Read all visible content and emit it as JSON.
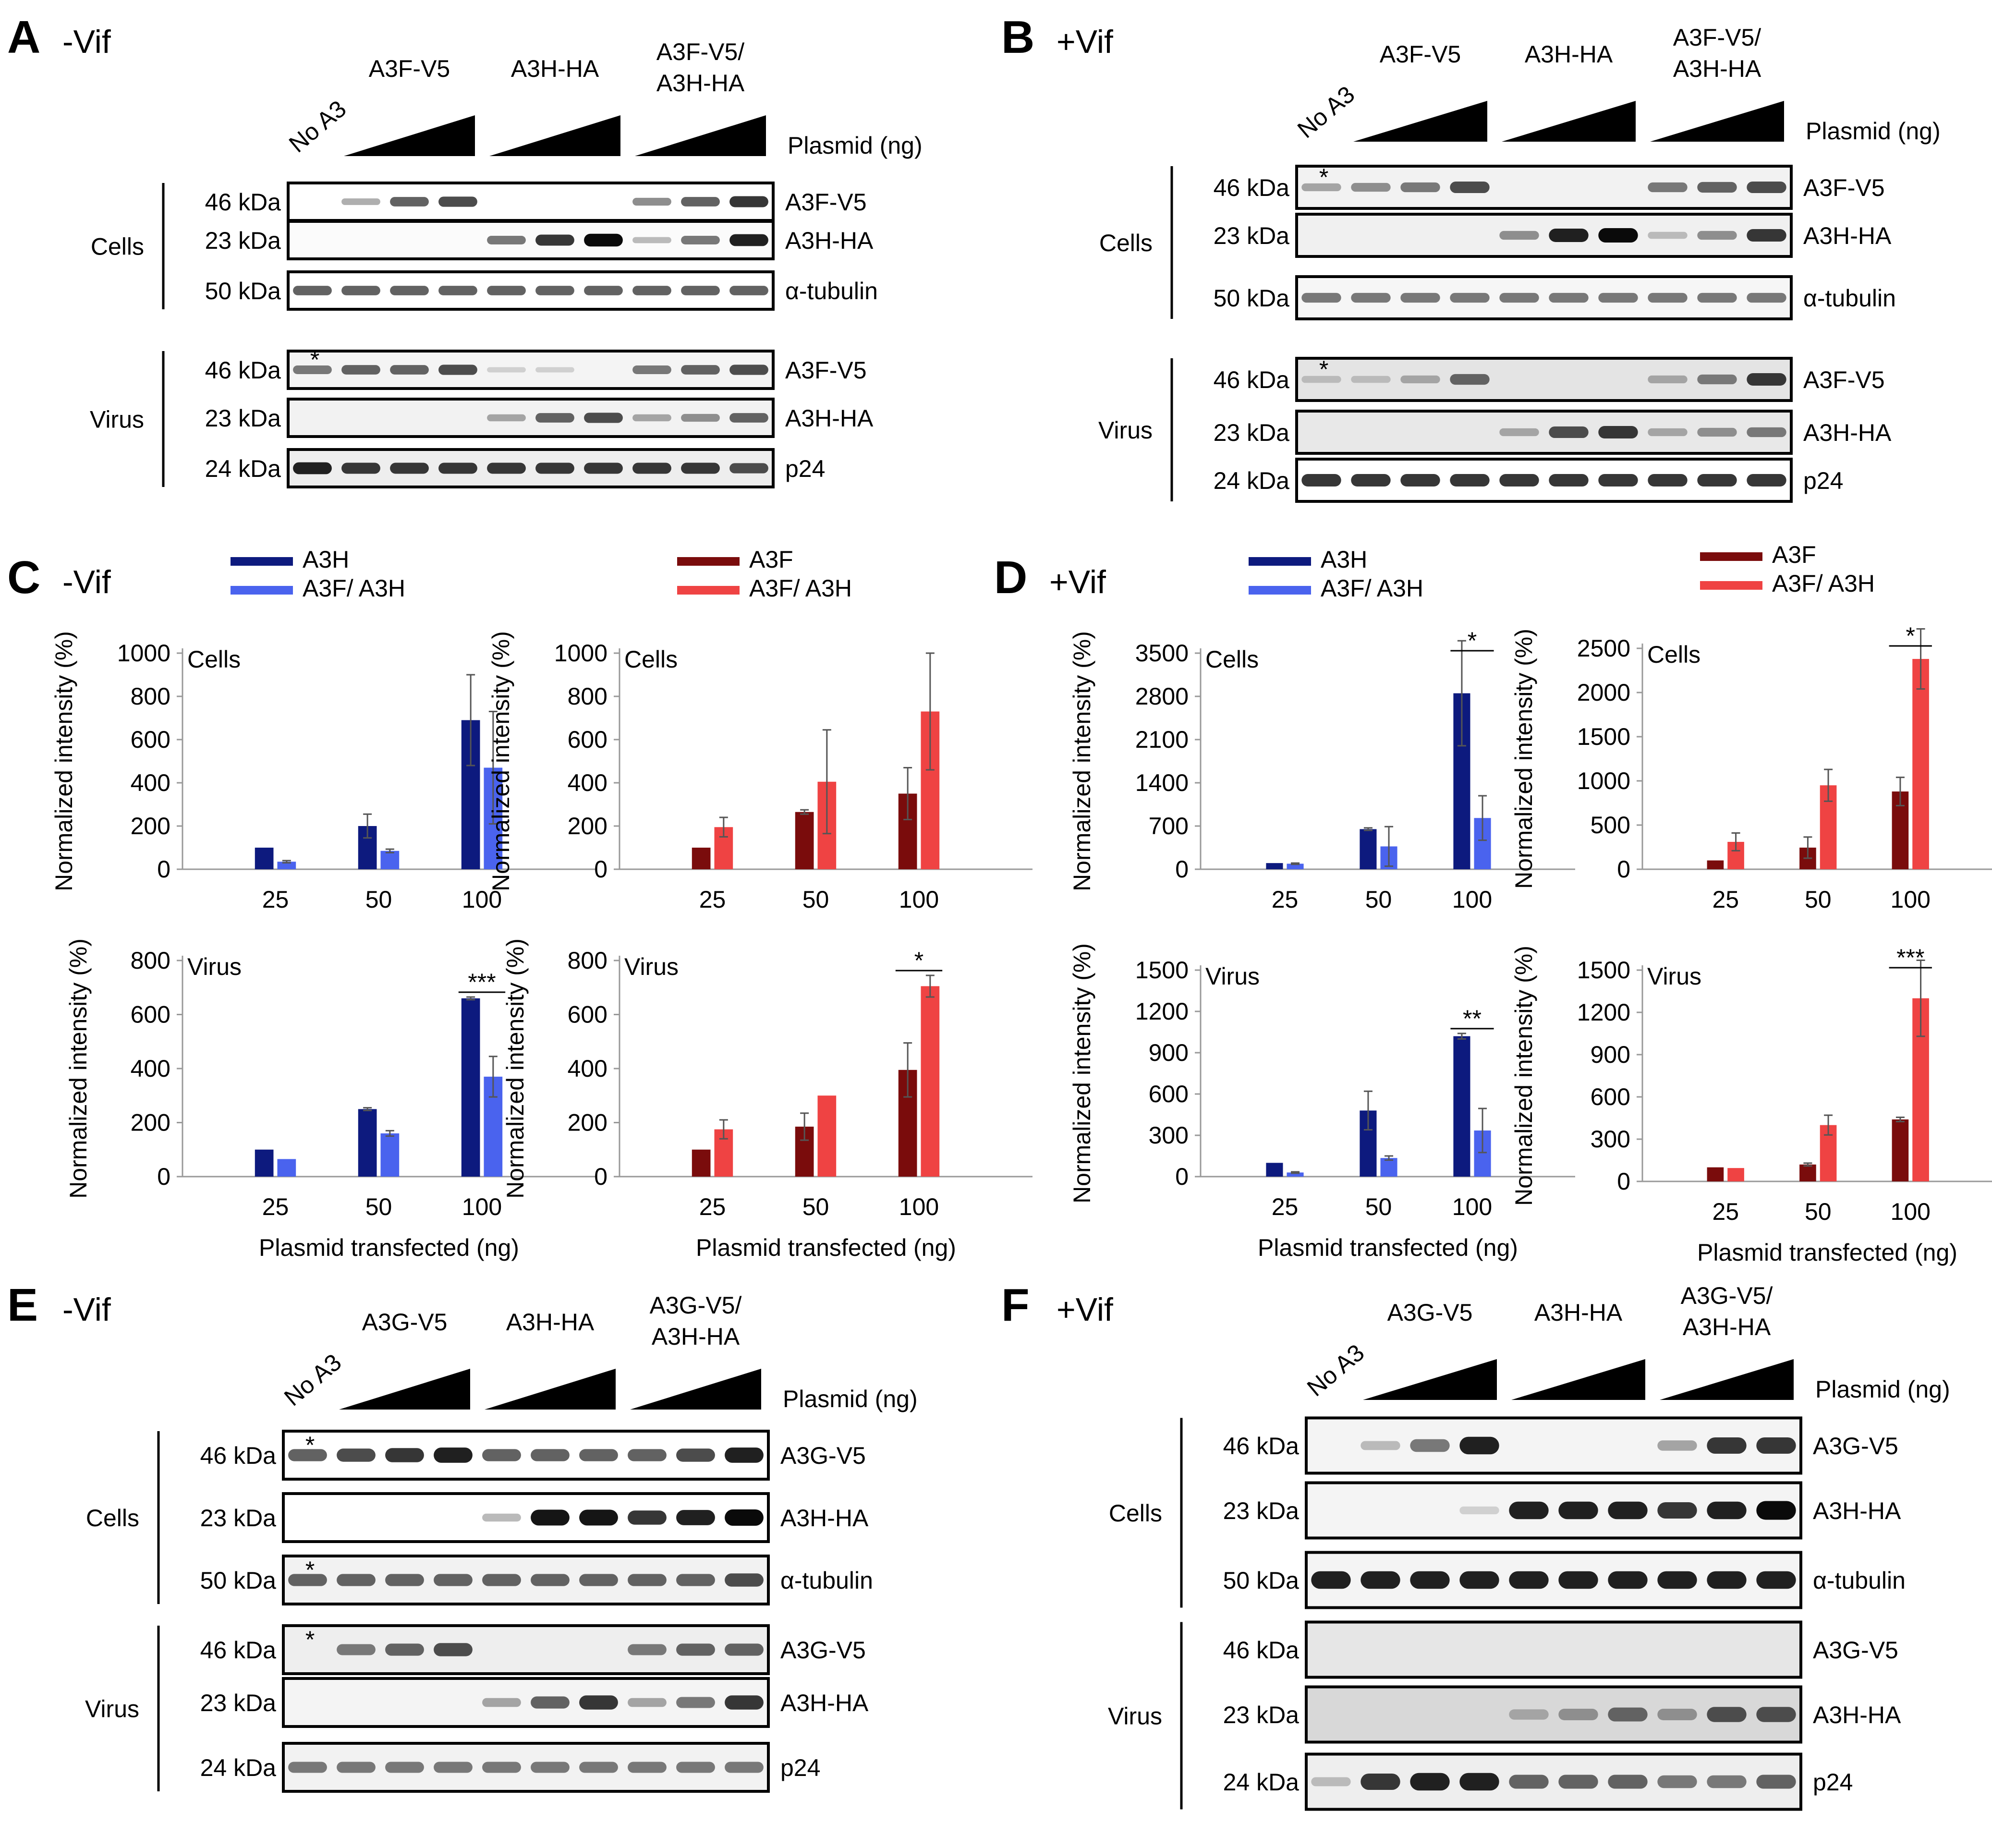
{
  "panels": [
    {
      "letter": "A",
      "condition": "-Vif",
      "groups": [
        "A3F-V5",
        "A3H-HA",
        [
          "A3F-V5/",
          "A3H-HA"
        ]
      ],
      "no_a3": "No A3",
      "plasmid": "Plasmid (ng)",
      "sections": [
        {
          "name": "Cells",
          "rows": [
            {
              "mw": "46 kDa",
              "protein": "A3F-V5",
              "bands": [
                0,
                0.25,
                0.6,
                0.7,
                0,
                0,
                0,
                0.4,
                0.6,
                0.8
              ],
              "bg": "#ffffff"
            },
            {
              "mw": "23 kDa",
              "protein": "A3H-HA",
              "bands": [
                0,
                0,
                0,
                0,
                0.5,
                0.8,
                1.0,
                0.2,
                0.5,
                0.9
              ],
              "bg": "#fbfbfb"
            },
            {
              "mw": "50 kDa",
              "protein": "α-tubulin",
              "bands": [
                0.6,
                0.6,
                0.6,
                0.6,
                0.6,
                0.6,
                0.6,
                0.6,
                0.6,
                0.6
              ],
              "bg": "#ffffff"
            }
          ]
        },
        {
          "name": "Virus",
          "rows": [
            {
              "mw": "46 kDa",
              "protein": "A3F-V5",
              "bands": [
                0.5,
                0.6,
                0.6,
                0.7,
                0.1,
                0.1,
                0,
                0.5,
                0.6,
                0.7
              ],
              "bg": "#f4f4f4",
              "star": true
            },
            {
              "mw": "23 kDa",
              "protein": "A3H-HA",
              "bands": [
                0,
                0,
                0,
                0,
                0.3,
                0.6,
                0.7,
                0.3,
                0.4,
                0.6
              ],
              "bg": "#f2f2f2"
            },
            {
              "mw": "24 kDa",
              "protein": "p24",
              "bands": [
                0.9,
                0.8,
                0.8,
                0.8,
                0.8,
                0.8,
                0.8,
                0.8,
                0.8,
                0.7
              ],
              "bg": "#eeeeee"
            }
          ]
        }
      ]
    },
    {
      "letter": "B",
      "condition": "+Vif",
      "groups": [
        "A3F-V5",
        "A3H-HA",
        [
          "A3F-V5/",
          "A3H-HA"
        ]
      ],
      "no_a3": "No A3",
      "plasmid": "Plasmid (ng)",
      "sections": [
        {
          "name": "Cells",
          "rows": [
            {
              "mw": "46 kDa",
              "protein": "A3F-V5",
              "bands": [
                0.3,
                0.4,
                0.5,
                0.7,
                0,
                0,
                0,
                0.5,
                0.6,
                0.7
              ],
              "bg": "#f2f2f2",
              "star": true
            },
            {
              "mw": "23 kDa",
              "protein": "A3H-HA",
              "bands": [
                0,
                0,
                0,
                0,
                0.4,
                0.9,
                1.0,
                0.2,
                0.4,
                0.8
              ],
              "bg": "#f0f0f0"
            },
            {
              "mw": "50 kDa",
              "protein": "α-tubulin",
              "bands": [
                0.5,
                0.5,
                0.5,
                0.5,
                0.5,
                0.5,
                0.5,
                0.5,
                0.5,
                0.5
              ],
              "bg": "#f6f6f6"
            }
          ]
        },
        {
          "name": "Virus",
          "rows": [
            {
              "mw": "46 kDa",
              "protein": "A3F-V5",
              "bands": [
                0.2,
                0.2,
                0.3,
                0.6,
                0,
                0,
                0,
                0.3,
                0.5,
                0.8
              ],
              "bg": "#e4e4e4",
              "star": true
            },
            {
              "mw": "23 kDa",
              "protein": "A3H-HA",
              "bands": [
                0,
                0,
                0,
                0,
                0.3,
                0.7,
                0.8,
                0.3,
                0.4,
                0.5
              ],
              "bg": "#e8e8e8"
            },
            {
              "mw": "24 kDa",
              "protein": "p24",
              "bands": [
                0.8,
                0.8,
                0.8,
                0.8,
                0.8,
                0.8,
                0.8,
                0.8,
                0.8,
                0.8
              ],
              "bg": "#ffffff"
            }
          ]
        }
      ]
    },
    {
      "letter": "E",
      "condition": "-Vif",
      "groups": [
        "A3G-V5",
        "A3H-HA",
        [
          "A3G-V5/",
          "A3H-HA"
        ]
      ],
      "no_a3": "No A3",
      "plasmid": "Plasmid (ng)",
      "sections": [
        {
          "name": "Cells",
          "rows": [
            {
              "mw": "46 kDa",
              "protein": "A3G-V5",
              "bands": [
                0.6,
                0.7,
                0.8,
                0.9,
                0.6,
                0.6,
                0.6,
                0.6,
                0.7,
                0.9
              ],
              "bg": "#ffffff",
              "star": true
            },
            {
              "mw": "23 kDa",
              "protein": "A3H-HA",
              "bands": [
                0,
                0,
                0,
                0,
                0.2,
                0.95,
                0.95,
                0.8,
                0.9,
                1.0
              ],
              "bg": "#ffffff"
            },
            {
              "mw": "50 kDa",
              "protein": "α-tubulin",
              "bands": [
                0.6,
                0.6,
                0.6,
                0.6,
                0.6,
                0.6,
                0.6,
                0.6,
                0.6,
                0.7
              ],
              "bg": "#f2f2f2",
              "star": true
            }
          ]
        },
        {
          "name": "Virus",
          "rows": [
            {
              "mw": "46 kDa",
              "protein": "A3G-V5",
              "bands": [
                0,
                0.5,
                0.6,
                0.7,
                0,
                0,
                0,
                0.5,
                0.6,
                0.6
              ],
              "bg": "#eeeeee",
              "star": true
            },
            {
              "mw": "23 kDa",
              "protein": "A3H-HA",
              "bands": [
                0,
                0,
                0,
                0,
                0.3,
                0.6,
                0.8,
                0.3,
                0.5,
                0.8
              ],
              "bg": "#f4f4f4"
            },
            {
              "mw": "24 kDa",
              "protein": "p24",
              "bands": [
                0.5,
                0.5,
                0.5,
                0.5,
                0.5,
                0.5,
                0.5,
                0.5,
                0.5,
                0.5
              ],
              "bg": "#f2f2f2"
            }
          ]
        }
      ]
    },
    {
      "letter": "F",
      "condition": "+Vif",
      "groups": [
        "A3G-V5",
        "A3H-HA",
        [
          "A3G-V5/",
          "A3H-HA"
        ]
      ],
      "no_a3": "No A3",
      "plasmid": "Plasmid (ng)",
      "sections": [
        {
          "name": "Cells",
          "rows": [
            {
              "mw": "46 kDa",
              "protein": "A3G-V5",
              "bands": [
                0,
                0.2,
                0.5,
                0.9,
                0,
                0,
                0,
                0.3,
                0.8,
                0.8
              ],
              "bg": "#f4f4f4"
            },
            {
              "mw": "23 kDa",
              "protein": "A3H-HA",
              "bands": [
                0,
                0,
                0,
                0.1,
                0.9,
                0.9,
                0.9,
                0.8,
                0.9,
                1.0
              ],
              "bg": "#f4f4f4"
            },
            {
              "mw": "50 kDa",
              "protein": "α-tubulin",
              "bands": [
                0.9,
                0.9,
                0.9,
                0.9,
                0.9,
                0.9,
                0.9,
                0.9,
                0.9,
                0.9
              ],
              "bg": "#f4f4f4"
            }
          ]
        },
        {
          "name": "Virus",
          "rows": [
            {
              "mw": "46 kDa",
              "protein": "A3G-V5",
              "bands": [
                0,
                0,
                0,
                0,
                0,
                0,
                0,
                0,
                0,
                0
              ],
              "bg": "#e6e6e6"
            },
            {
              "mw": "23 kDa",
              "protein": "A3H-HA",
              "bands": [
                0,
                0,
                0,
                0,
                0.3,
                0.4,
                0.6,
                0.4,
                0.7,
                0.7
              ],
              "bg": "#d8d8d8"
            },
            {
              "mw": "24 kDa",
              "protein": "p24",
              "bands": [
                0.2,
                0.8,
                0.9,
                0.9,
                0.6,
                0.6,
                0.6,
                0.5,
                0.5,
                0.6
              ],
              "bg": "#eeeeee"
            }
          ]
        }
      ]
    }
  ],
  "charts": {
    "C": {
      "letter": "C",
      "condition": "-Vif"
    },
    "D": {
      "letter": "D",
      "condition": "+Vif"
    }
  },
  "colors": {
    "A3H": "#0d1a7e",
    "A3F_A3H_blue": "#4a63ee",
    "A3F": "#7a0c0c",
    "A3F_A3H_red": "#ef4343"
  },
  "chart_data": [
    {
      "panel": "C",
      "type": "bar",
      "subtitle": "Cells",
      "legend": [
        "A3H",
        "A3F/ A3H"
      ],
      "categories": [
        "25",
        "50",
        "100"
      ],
      "ylabel": "Normalized intensity (%)",
      "xlabel": "",
      "ylim": [
        0,
        1000
      ],
      "yticks": [
        0,
        200,
        400,
        600,
        800,
        1000
      ],
      "series": [
        {
          "name": "A3H",
          "values": [
            100,
            200,
            690
          ],
          "errors": [
            0,
            55,
            210
          ]
        },
        {
          "name": "A3F/ A3H",
          "values": [
            35,
            85,
            470
          ],
          "errors": [
            5,
            8,
            260
          ]
        }
      ],
      "sig": []
    },
    {
      "panel": "C",
      "type": "bar",
      "subtitle": "Cells",
      "legend": [
        "A3F",
        "A3F/ A3H"
      ],
      "categories": [
        "25",
        "50",
        "100"
      ],
      "ylabel": "Normalized intensity (%)",
      "xlabel": "",
      "ylim": [
        0,
        1000
      ],
      "yticks": [
        0,
        200,
        400,
        600,
        800,
        1000
      ],
      "series": [
        {
          "name": "A3F",
          "values": [
            100,
            265,
            350
          ],
          "errors": [
            0,
            10,
            120
          ]
        },
        {
          "name": "A3F/ A3H",
          "values": [
            195,
            405,
            730
          ],
          "errors": [
            45,
            240,
            270
          ]
        }
      ],
      "sig": []
    },
    {
      "panel": "C",
      "type": "bar",
      "subtitle": "Virus",
      "categories": [
        "25",
        "50",
        "100"
      ],
      "ylabel": "Normalized intensity (%)",
      "xlabel": "Plasmid transfected (ng)",
      "ylim": [
        0,
        800
      ],
      "yticks": [
        0,
        200,
        400,
        600,
        800
      ],
      "series": [
        {
          "name": "A3H",
          "values": [
            100,
            250,
            660
          ],
          "errors": [
            0,
            5,
            5
          ]
        },
        {
          "name": "A3F/ A3H",
          "values": [
            65,
            160,
            370
          ],
          "errors": [
            0,
            10,
            75
          ]
        }
      ],
      "sig": [
        {
          "category": 2,
          "label": "***"
        }
      ]
    },
    {
      "panel": "C",
      "type": "bar",
      "subtitle": "Virus",
      "categories": [
        "25",
        "50",
        "100"
      ],
      "ylabel": "Normalized intensity (%)",
      "xlabel": "Plasmid transfected (ng)",
      "ylim": [
        0,
        800
      ],
      "yticks": [
        0,
        200,
        400,
        600,
        800
      ],
      "series": [
        {
          "name": "A3F",
          "values": [
            100,
            185,
            395
          ],
          "errors": [
            0,
            50,
            100
          ]
        },
        {
          "name": "A3F/ A3H",
          "values": [
            175,
            300,
            705
          ],
          "errors": [
            35,
            0,
            40
          ]
        }
      ],
      "sig": [
        {
          "category": 2,
          "label": "*"
        }
      ]
    },
    {
      "panel": "D",
      "type": "bar",
      "subtitle": "Cells",
      "legend": [
        "A3H",
        "A3F/ A3H"
      ],
      "categories": [
        "25",
        "50",
        "100"
      ],
      "ylabel": "Normalized intensity (%)",
      "xlabel": "",
      "ylim": [
        0,
        3500
      ],
      "yticks": [
        0,
        700,
        1400,
        2100,
        2800,
        3500
      ],
      "series": [
        {
          "name": "A3H",
          "values": [
            100,
            650,
            2850
          ],
          "errors": [
            0,
            20,
            850
          ]
        },
        {
          "name": "A3F/ A3H",
          "values": [
            90,
            370,
            830
          ],
          "errors": [
            10,
            320,
            360
          ]
        }
      ],
      "sig": [
        {
          "category": 2,
          "label": "*"
        }
      ]
    },
    {
      "panel": "D",
      "type": "bar",
      "subtitle": "Cells",
      "legend": [
        "A3F",
        "A3F/ A3H"
      ],
      "categories": [
        "25",
        "50",
        "100"
      ],
      "ylabel": "Normalized intensity (%)",
      "xlabel": "",
      "ylim": [
        0,
        2500
      ],
      "yticks": [
        0,
        500,
        1000,
        1500,
        2000,
        2500
      ],
      "series": [
        {
          "name": "A3F",
          "values": [
            100,
            245,
            880
          ],
          "errors": [
            0,
            120,
            160
          ]
        },
        {
          "name": "A3F/ A3H",
          "values": [
            310,
            950,
            2380
          ],
          "errors": [
            100,
            180,
            340
          ]
        }
      ],
      "sig": [
        {
          "category": 2,
          "label": "*"
        }
      ]
    },
    {
      "panel": "D",
      "type": "bar",
      "subtitle": "Virus",
      "categories": [
        "25",
        "50",
        "100"
      ],
      "ylabel": "Normalized intensity (%)",
      "xlabel": "Plasmid transfected (ng)",
      "ylim": [
        0,
        1500
      ],
      "yticks": [
        0,
        300,
        600,
        900,
        1200,
        1500
      ],
      "series": [
        {
          "name": "A3H",
          "values": [
            100,
            480,
            1020
          ],
          "errors": [
            0,
            140,
            20
          ]
        },
        {
          "name": "A3F/ A3H",
          "values": [
            30,
            135,
            335
          ],
          "errors": [
            5,
            15,
            160
          ]
        }
      ],
      "sig": [
        {
          "category": 2,
          "label": "**"
        }
      ]
    },
    {
      "panel": "D",
      "type": "bar",
      "subtitle": "Virus",
      "categories": [
        "25",
        "50",
        "100"
      ],
      "ylabel": "Normalized intensity (%)",
      "xlabel": "Plasmid transfected (ng)",
      "ylim": [
        0,
        1500
      ],
      "yticks": [
        0,
        300,
        600,
        900,
        1200,
        1500
      ],
      "series": [
        {
          "name": "A3F",
          "values": [
            100,
            120,
            440
          ],
          "errors": [
            0,
            10,
            15
          ]
        },
        {
          "name": "A3F/ A3H",
          "values": [
            95,
            400,
            1300
          ],
          "errors": [
            0,
            70,
            270
          ]
        }
      ],
      "sig": [
        {
          "category": 2,
          "label": "***"
        }
      ]
    }
  ]
}
